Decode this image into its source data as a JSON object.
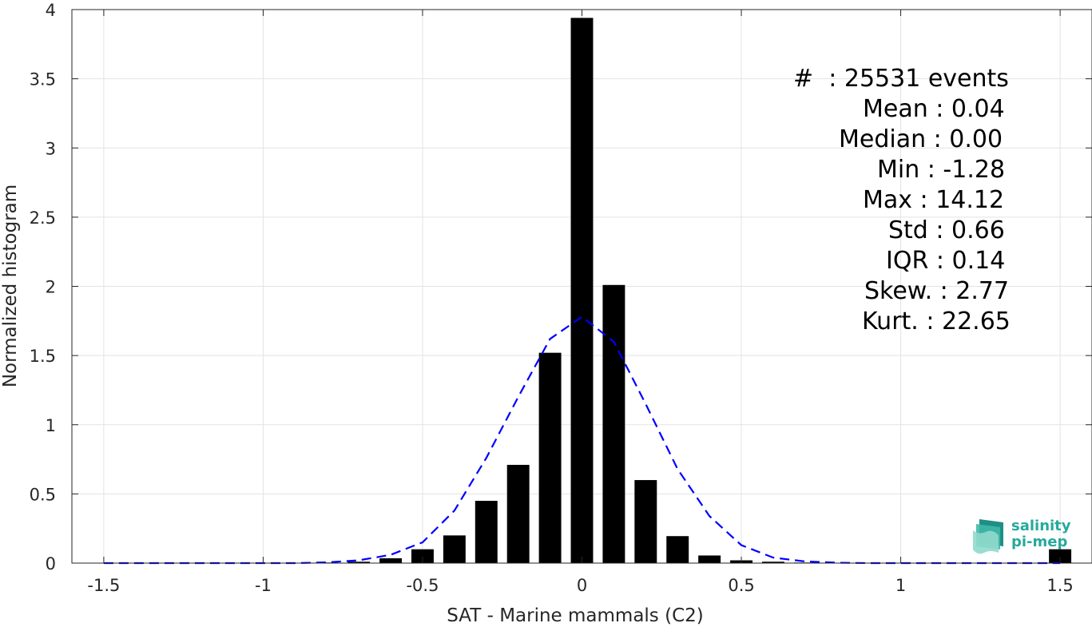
{
  "chart_data": {
    "type": "bar",
    "xlabel": "SAT - Marine mammals (C2)",
    "ylabel": "Normalized histogram",
    "xlim": [
      -1.6,
      1.6
    ],
    "ylim": [
      0,
      4
    ],
    "xticks": [
      "-1.5",
      "-1",
      "-0.5",
      "0",
      "0.5",
      "1",
      "1.5"
    ],
    "yticks": [
      "0",
      "0.5",
      "1",
      "1.5",
      "2",
      "2.5",
      "3",
      "3.5",
      "4"
    ],
    "grid": true,
    "bars": {
      "x": [
        -1.0,
        -0.9,
        -0.8,
        -0.7,
        -0.6,
        -0.5,
        -0.4,
        -0.3,
        -0.2,
        -0.1,
        0.0,
        0.1,
        0.2,
        0.3,
        0.4,
        0.5,
        0.6,
        0.7,
        0.8,
        0.9,
        1.0,
        1.1,
        1.2,
        1.3,
        1.4,
        1.5
      ],
      "values": [
        0.0,
        0.0,
        0.004,
        0.01,
        0.035,
        0.1,
        0.2,
        0.45,
        0.71,
        1.52,
        3.94,
        2.01,
        0.6,
        0.195,
        0.055,
        0.02,
        0.01,
        0.004,
        0.002,
        0.0,
        0.0,
        0.0,
        0.0,
        0.0,
        0.0,
        0.1
      ],
      "color": "#000000"
    },
    "fit_curve": {
      "x": [
        -1.5,
        -1.4,
        -1.3,
        -1.2,
        -1.1,
        -1.0,
        -0.9,
        -0.8,
        -0.7,
        -0.6,
        -0.5,
        -0.4,
        -0.3,
        -0.2,
        -0.1,
        0.0,
        0.1,
        0.2,
        0.3,
        0.4,
        0.5,
        0.6,
        0.7,
        0.8,
        0.9,
        1.0,
        1.1,
        1.2,
        1.3,
        1.4,
        1.5
      ],
      "values": [
        0.0,
        0.0,
        0.0,
        0.0,
        0.0,
        0.0,
        0.0,
        0.005,
        0.02,
        0.06,
        0.15,
        0.38,
        0.76,
        1.2,
        1.62,
        1.78,
        1.6,
        1.15,
        0.68,
        0.34,
        0.13,
        0.04,
        0.012,
        0.003,
        0.0,
        0.0,
        0.0,
        0.0,
        0.0,
        0.0,
        0.0
      ],
      "color": "#0000ff",
      "style": "dashed"
    }
  },
  "stats": [
    "#  : 25531 events",
    "Mean : 0.04",
    "Median : 0.00",
    "Min : -1.28",
    "Max : 14.12",
    "Std : 0.66",
    "IQR : 0.14",
    "Skew. : 2.77",
    "Kurt. : 22.65"
  ],
  "logo": {
    "line1": "salinity",
    "line2": "pi-mep",
    "color": "#27a99b"
  }
}
